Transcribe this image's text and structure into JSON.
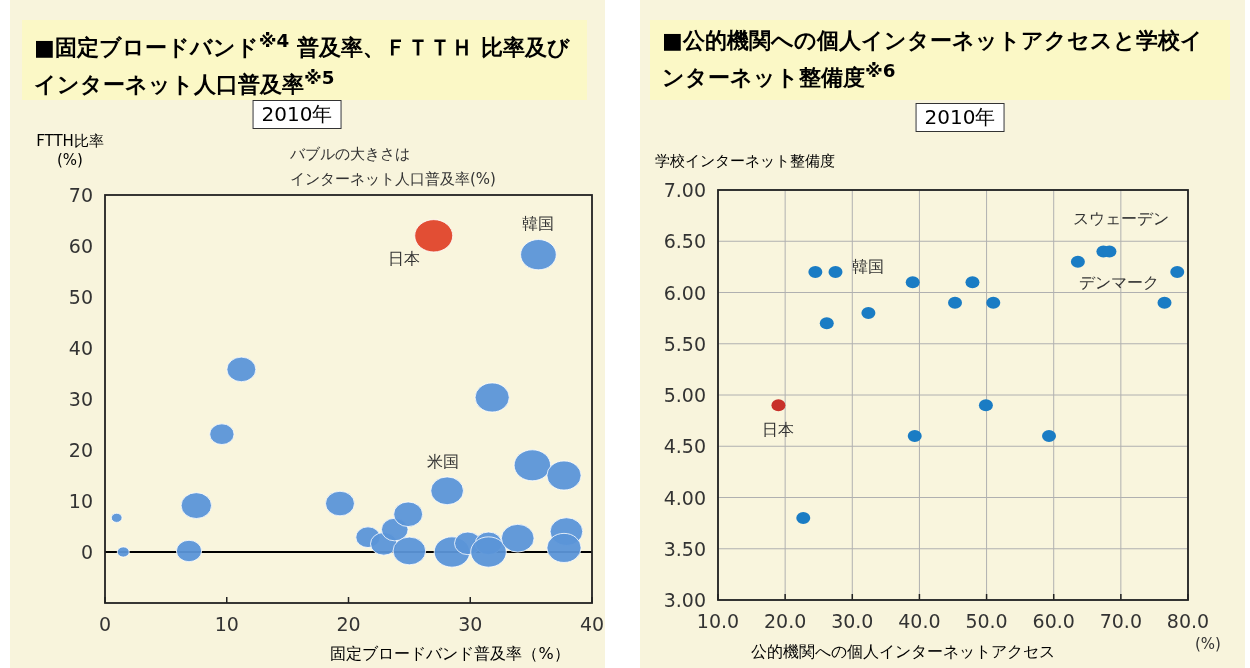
{
  "chart_data": [
    {
      "type": "bubble",
      "title": "■固定ブロードバンド$^{※4}$ 普及率、ＦＴＴＨ 比率及びインターネット人口普及率$^{※5}$",
      "subtitle": "2010年",
      "xlabel": "固定ブロードバンド普及率（%）",
      "ylabel": "FTTH比率 (%)",
      "xlim": [
        0,
        40
      ],
      "xticks": [
        0,
        10,
        20,
        30,
        40
      ],
      "ylim": [
        -10,
        70
      ],
      "yticks": [
        0,
        10,
        20,
        30,
        40,
        50,
        60,
        70
      ],
      "grid": false,
      "marker": "circle",
      "ref_lines": [
        {
          "axis": "y",
          "value": 0,
          "color": "#000000"
        }
      ],
      "series": [
        {
          "color": "#5b95d8",
          "x": [
            0.96,
            1.5,
            6.9,
            7.5,
            9.6,
            11.2,
            19.3,
            21.6,
            22.9,
            23.8,
            24.9,
            25,
            28.1,
            28.5,
            29.8,
            31.5,
            31.5,
            31.8,
            33.9,
            35.1,
            35.6,
            37.7,
            37.9,
            37.7
          ],
          "values": [
            6.7,
            0,
            0.2,
            9.1,
            23.1,
            35.8,
            9.5,
            2.9,
            1.6,
            4.4,
            7.4,
            0.2,
            12,
            0,
            1.7,
            1.7,
            0,
            30.3,
            2.7,
            17,
            58.3,
            15,
            4,
            0.8
          ],
          "sizes": [
            0.08,
            0.1,
            0.44,
            0.64,
            0.41,
            0.58,
            0.58,
            0.41,
            0.49,
            0.49,
            0.58,
            0.74,
            0.74,
            0.88,
            0.49,
            0.49,
            0.88,
            0.81,
            0.74,
            0.92,
            0.88,
            0.81,
            0.74,
            0.81
          ]
        },
        {
          "color": "#e0452a",
          "x": [
            27
          ],
          "values": [
            62
          ],
          "sizes": [
            1
          ]
        }
      ],
      "annotations": [
        {
          "text": "日本",
          "x": 27,
          "y": 62
        },
        {
          "text": "韓国",
          "x": 35.6,
          "y": 58.3
        },
        {
          "text": "米国",
          "x": 28.1,
          "y": 12
        },
        "バブルの大きさは",
        "インターネット人口普及率(%)"
      ]
    },
    {
      "type": "scatter",
      "title": "■公的機関への個人インターネットアクセスと学校インターネット整備度$^{※6}$",
      "subtitle": "2010年",
      "xlabel": "公的機関への個人インターネットアクセス",
      "ylabel": "学校インターネット整備度",
      "xlim": [
        10,
        80
      ],
      "xticks": [
        {
          "value": 10,
          "label": "10.0"
        },
        {
          "value": 20,
          "label": "20.0"
        },
        {
          "value": 30,
          "label": "30.0"
        },
        {
          "value": 40,
          "label": "40.0"
        },
        {
          "value": 50,
          "label": "50.0"
        },
        {
          "value": 60,
          "label": "60.0"
        },
        {
          "value": 70,
          "label": "70.0"
        },
        {
          "value": 80,
          "label": "80.0"
        }
      ],
      "ylim": [
        3,
        7
      ],
      "yticks": [
        {
          "value": 3,
          "label": "3.00"
        },
        {
          "value": 3.5,
          "label": "3.50"
        },
        {
          "value": 4,
          "label": "4.00"
        },
        {
          "value": 4.5,
          "label": "4.50"
        },
        {
          "value": 5,
          "label": "5.00"
        },
        {
          "value": 5.5,
          "label": "5.50"
        },
        {
          "value": 6,
          "label": "6.00"
        },
        {
          "value": 6.5,
          "label": "6.50"
        },
        {
          "value": 7,
          "label": "7.00"
        }
      ],
      "grid": true,
      "marker": "circle",
      "series": [
        {
          "color": "#1a7cc4",
          "x": [
            24.5,
            27.5,
            26.2,
            32.4,
            39,
            39.3,
            45.3,
            47.9,
            51,
            49.9,
            59.3,
            63.6,
            67.4,
            68.3,
            76.5,
            78.4,
            22.7
          ],
          "values": [
            6.2,
            6.2,
            5.7,
            5.8,
            6.1,
            4.6,
            5.9,
            6.1,
            5.9,
            4.9,
            4.6,
            6.3,
            6.4,
            6.4,
            5.9,
            6.2,
            3.8
          ]
        },
        {
          "color": "#c8302a",
          "x": [
            19
          ],
          "values": [
            4.9
          ]
        }
      ],
      "annotations": [
        {
          "text": "日本",
          "x": 19,
          "y": 4.9
        },
        {
          "text": "韓国",
          "x": 27.5,
          "y": 6.2
        },
        {
          "text": "スウェーデン",
          "x": 68.3,
          "y": 6.4
        },
        {
          "text": "デンマーク",
          "x": 67.4,
          "y": 6.4
        },
        "(%)"
      ]
    }
  ]
}
